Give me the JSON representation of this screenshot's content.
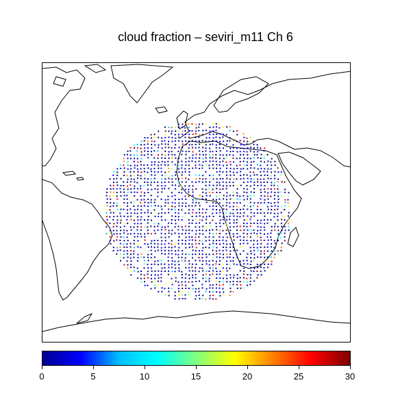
{
  "title": "cloud fraction – seviri_m11 Ch 6",
  "map": {
    "projection": "cylindrical-equidistant",
    "lon_range": [
      -90,
      90
    ],
    "lat_range": [
      -80,
      80
    ],
    "satellite_subpoint_lon": 0,
    "coverage_disk_radius_deg": 70,
    "land_color": "#ffffff",
    "coast_color": "#000000",
    "observations_description": "scattered cloud-fraction observations mostly low (dark blue) with scattered higher values along cloud edges"
  },
  "colorbar": {
    "min": 0,
    "max": 30,
    "tick_labels": [
      "0",
      "5",
      "10",
      "15",
      "20",
      "25",
      "30"
    ],
    "tick_values": [
      0,
      5,
      10,
      15,
      20,
      25,
      30
    ],
    "colormap": "jet",
    "colors": [
      "#00008f",
      "#0000ff",
      "#00bfff",
      "#00ffff",
      "#7fff7f",
      "#ffff00",
      "#ff7f00",
      "#ff0000",
      "#7f0000"
    ]
  }
}
